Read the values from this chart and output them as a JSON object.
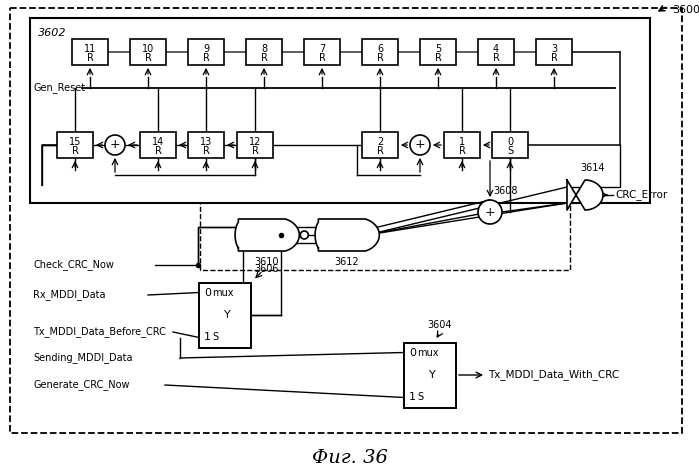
{
  "title": "Фиг. 36",
  "label_3600": "3600",
  "label_3602": "3602",
  "label_3604": "3604",
  "label_3606": "3606",
  "label_3608": "3608",
  "label_3610": "3610",
  "label_3612": "3612",
  "label_3614": "3614",
  "gen_reset_label": "Gen_Reset",
  "check_crc_label": "Check_CRC_Now",
  "rx_mddi_label": "Rx_MDDI_Data",
  "tx_before_label": "Tx_MDDI_Data_Before_CRC",
  "sending_label": "Sending_MDDI_Data",
  "generate_label": "Generate_CRC_Now",
  "crc_error_label": "CRC_Error",
  "tx_with_label": "Tx_MDDI_Data_With_CRC",
  "bg_color": "#ffffff",
  "figsize": [
    6.99,
    4.67
  ],
  "dpi": 100
}
